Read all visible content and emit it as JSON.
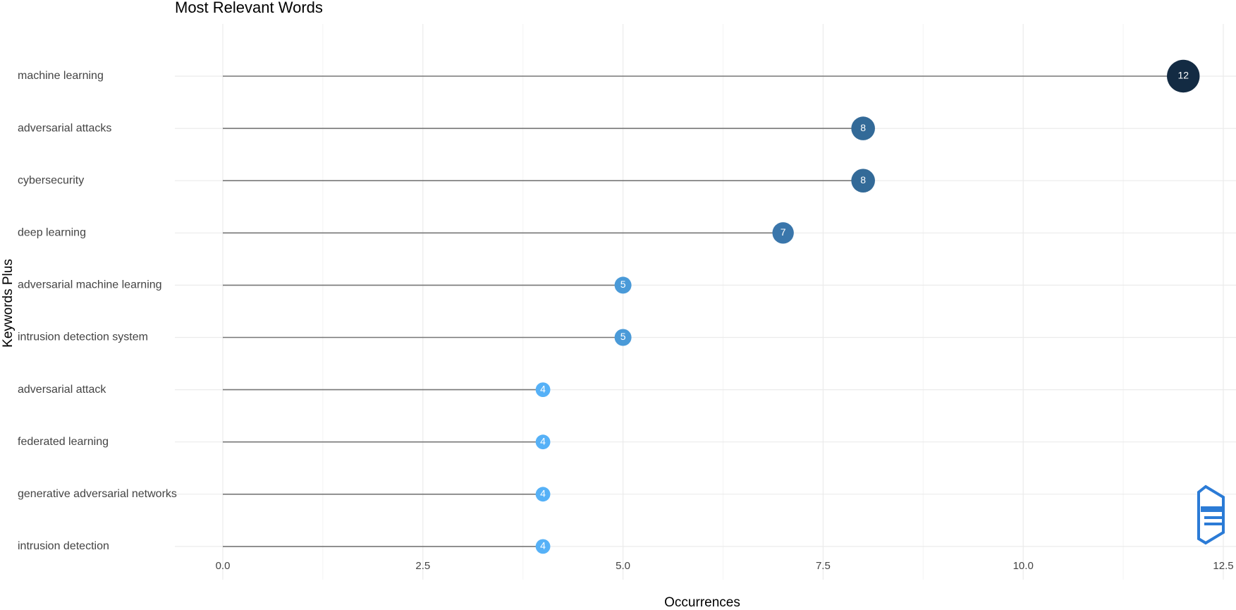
{
  "chart_data": {
    "type": "lollipop",
    "title": "Most Relevant Words",
    "x_label": "Occurrences",
    "y_label": "Keywords Plus",
    "categories": [
      "machine learning",
      "adversarial attacks",
      "cybersecurity",
      "deep learning",
      "adversarial machine learning",
      "intrusion detection system",
      "adversarial attack",
      "federated learning",
      "generative adversarial networks",
      "intrusion detection"
    ],
    "values": [
      12,
      8,
      8,
      7,
      5,
      5,
      4,
      4,
      4,
      4
    ],
    "colors": [
      "#132b43",
      "#336a98",
      "#336a98",
      "#3a76ab",
      "#4a9ad8",
      "#4a9ad8",
      "#56b1f7",
      "#56b1f7",
      "#56b1f7",
      "#56b1f7"
    ],
    "stem_color": "#777777",
    "xlim": [
      -0.6,
      12.6
    ],
    "xticks": [
      {
        "value": 0,
        "label": "0.0"
      },
      {
        "value": 2.5,
        "label": "2.5"
      },
      {
        "value": 5,
        "label": "5.0"
      },
      {
        "value": 7.5,
        "label": "7.5"
      },
      {
        "value": 10,
        "label": "10.0"
      },
      {
        "value": 12.5,
        "label": "12.5"
      }
    ],
    "grid": true
  }
}
